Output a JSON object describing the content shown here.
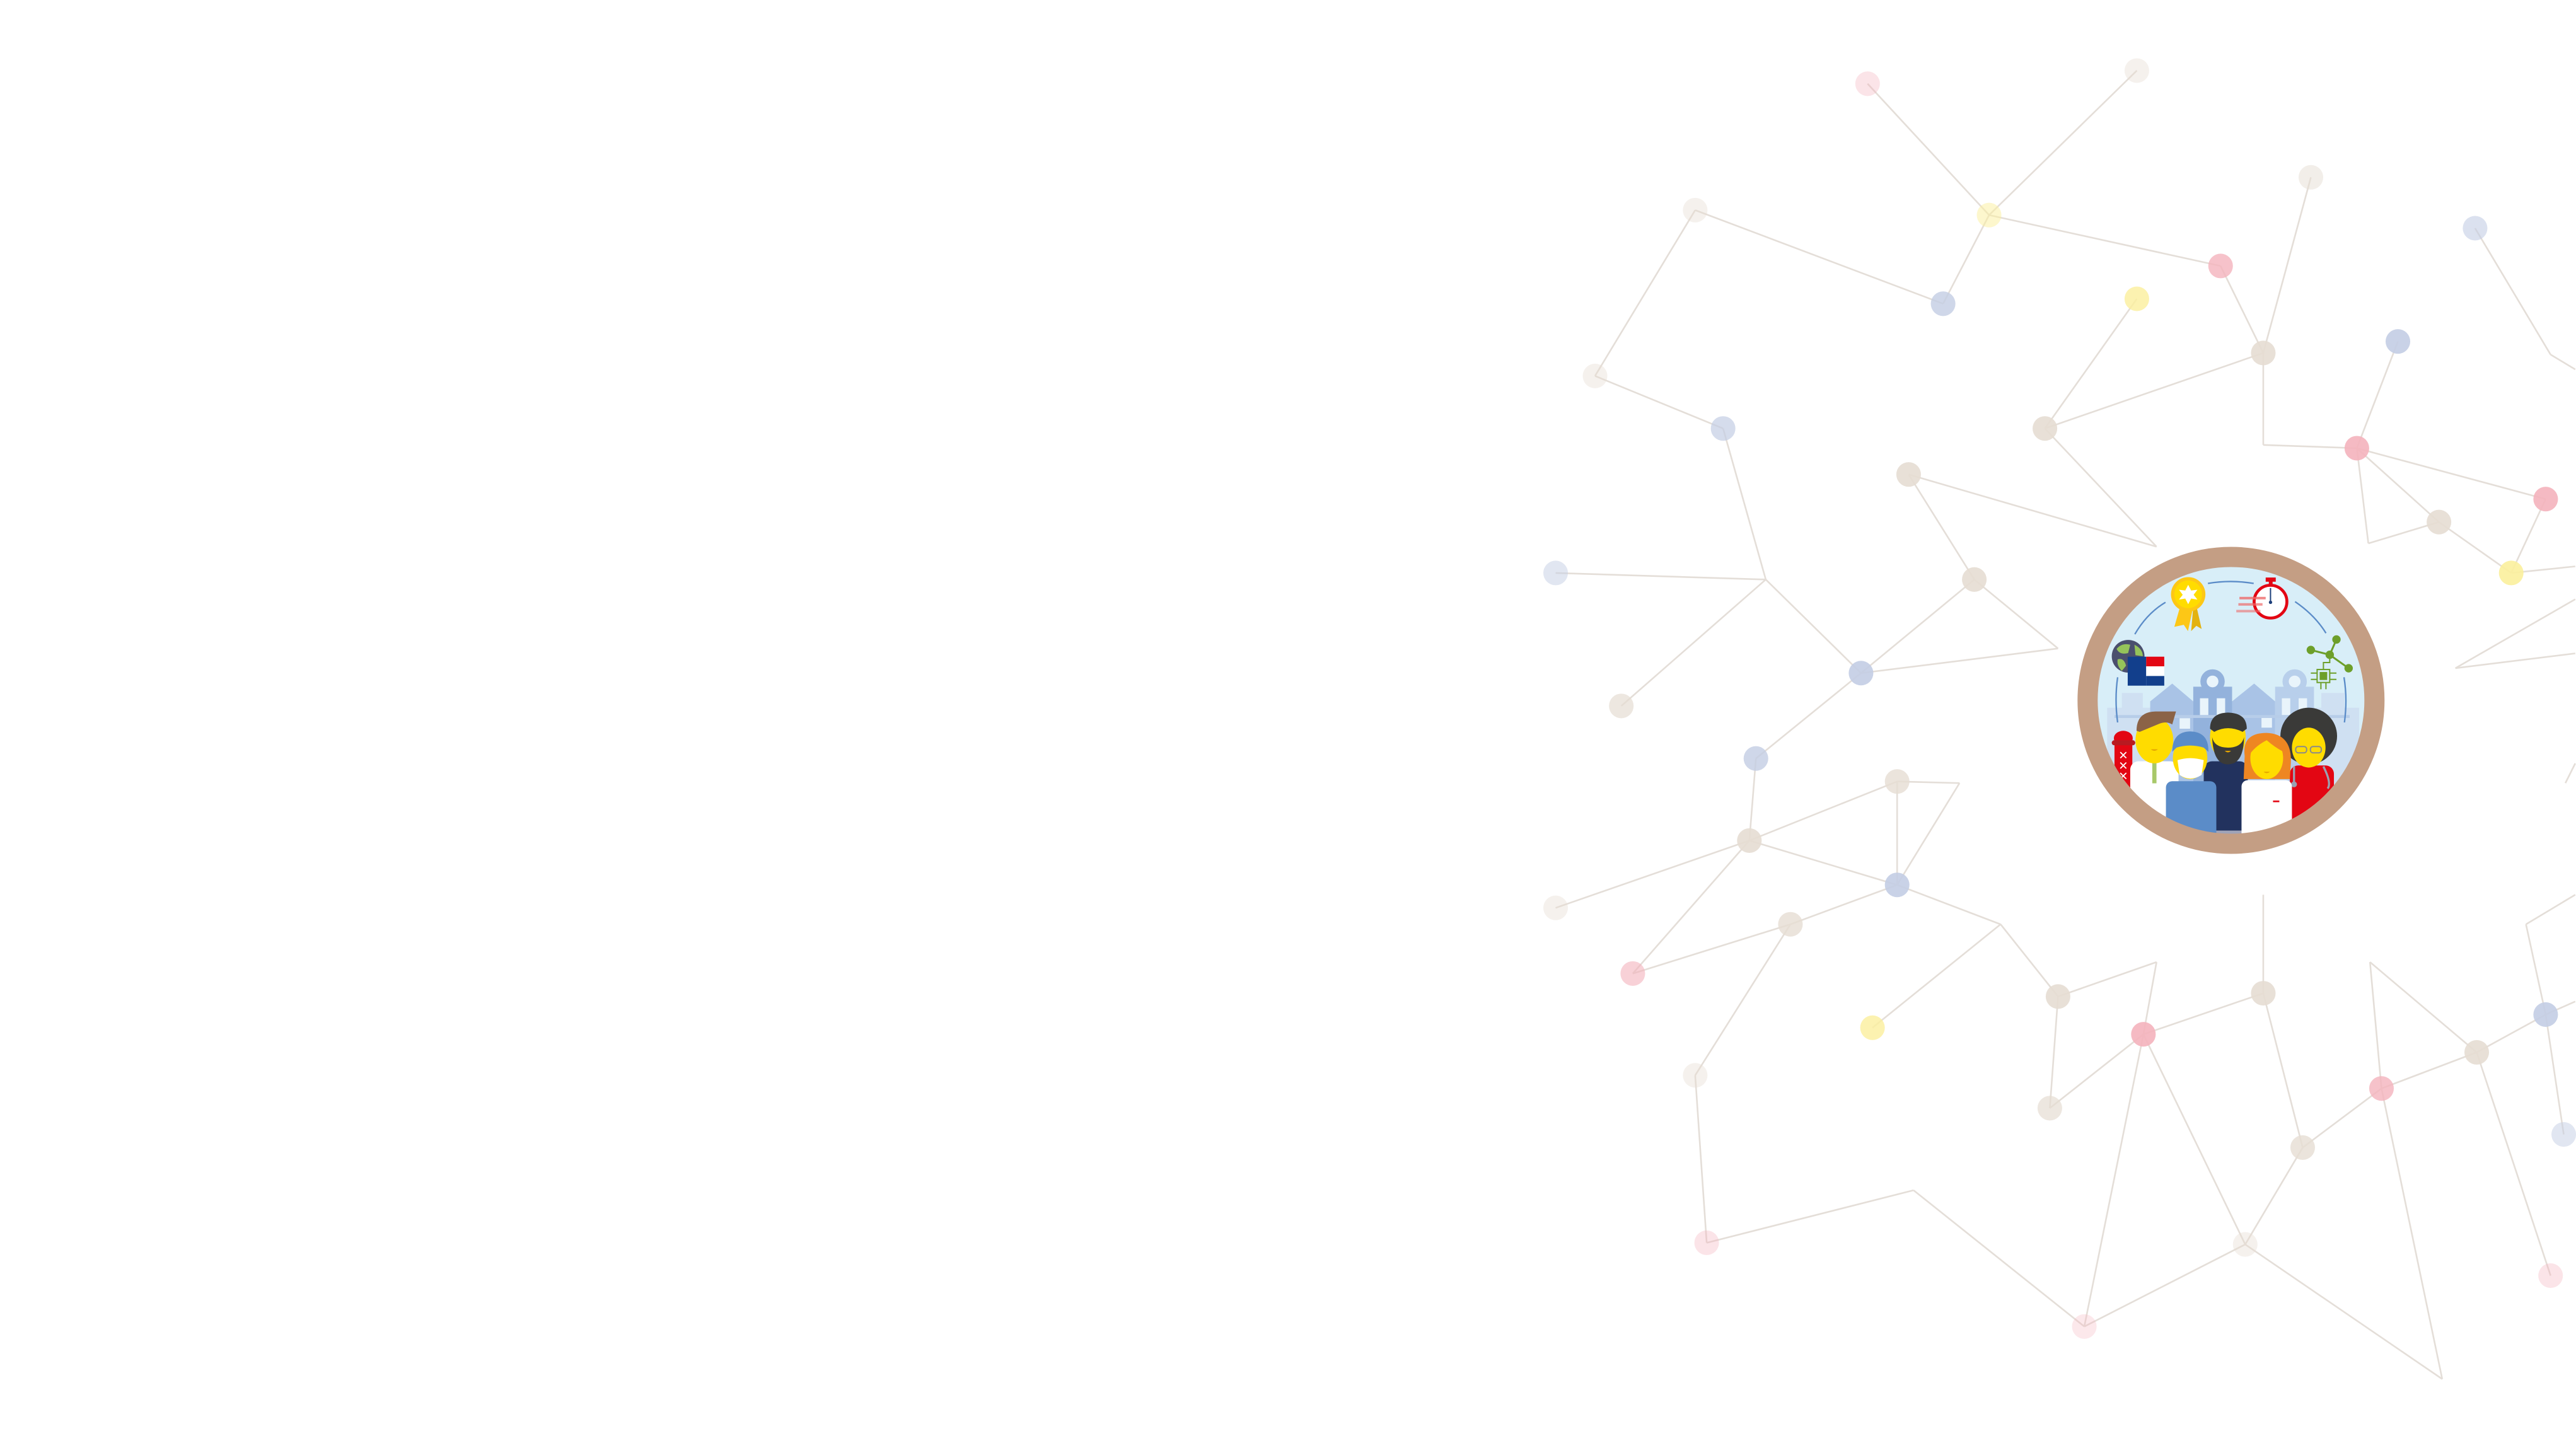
{
  "page": {
    "background": "#ffffff"
  },
  "network": {
    "node_colors": {
      "pink": "#f4b3bd",
      "yellow": "#fbef9c",
      "beige": "#e6ddd3",
      "blue": "#c3cde4"
    },
    "edge_color": "#e4ded8"
  },
  "illustration": {
    "ring_color": "#c49e84",
    "sky_color": "#d8eef8",
    "icons": [
      "medal-icon",
      "stopwatch-icon",
      "globe-icon",
      "eu-nl-flag-icon",
      "molecule-icon",
      "chip-icon",
      "amsterdam-pole-icon"
    ],
    "people": [
      "doctor-brown-hair",
      "surgeon-masked",
      "bearded-man",
      "woman-orange-hair",
      "nurse-afro-stethoscope"
    ]
  }
}
